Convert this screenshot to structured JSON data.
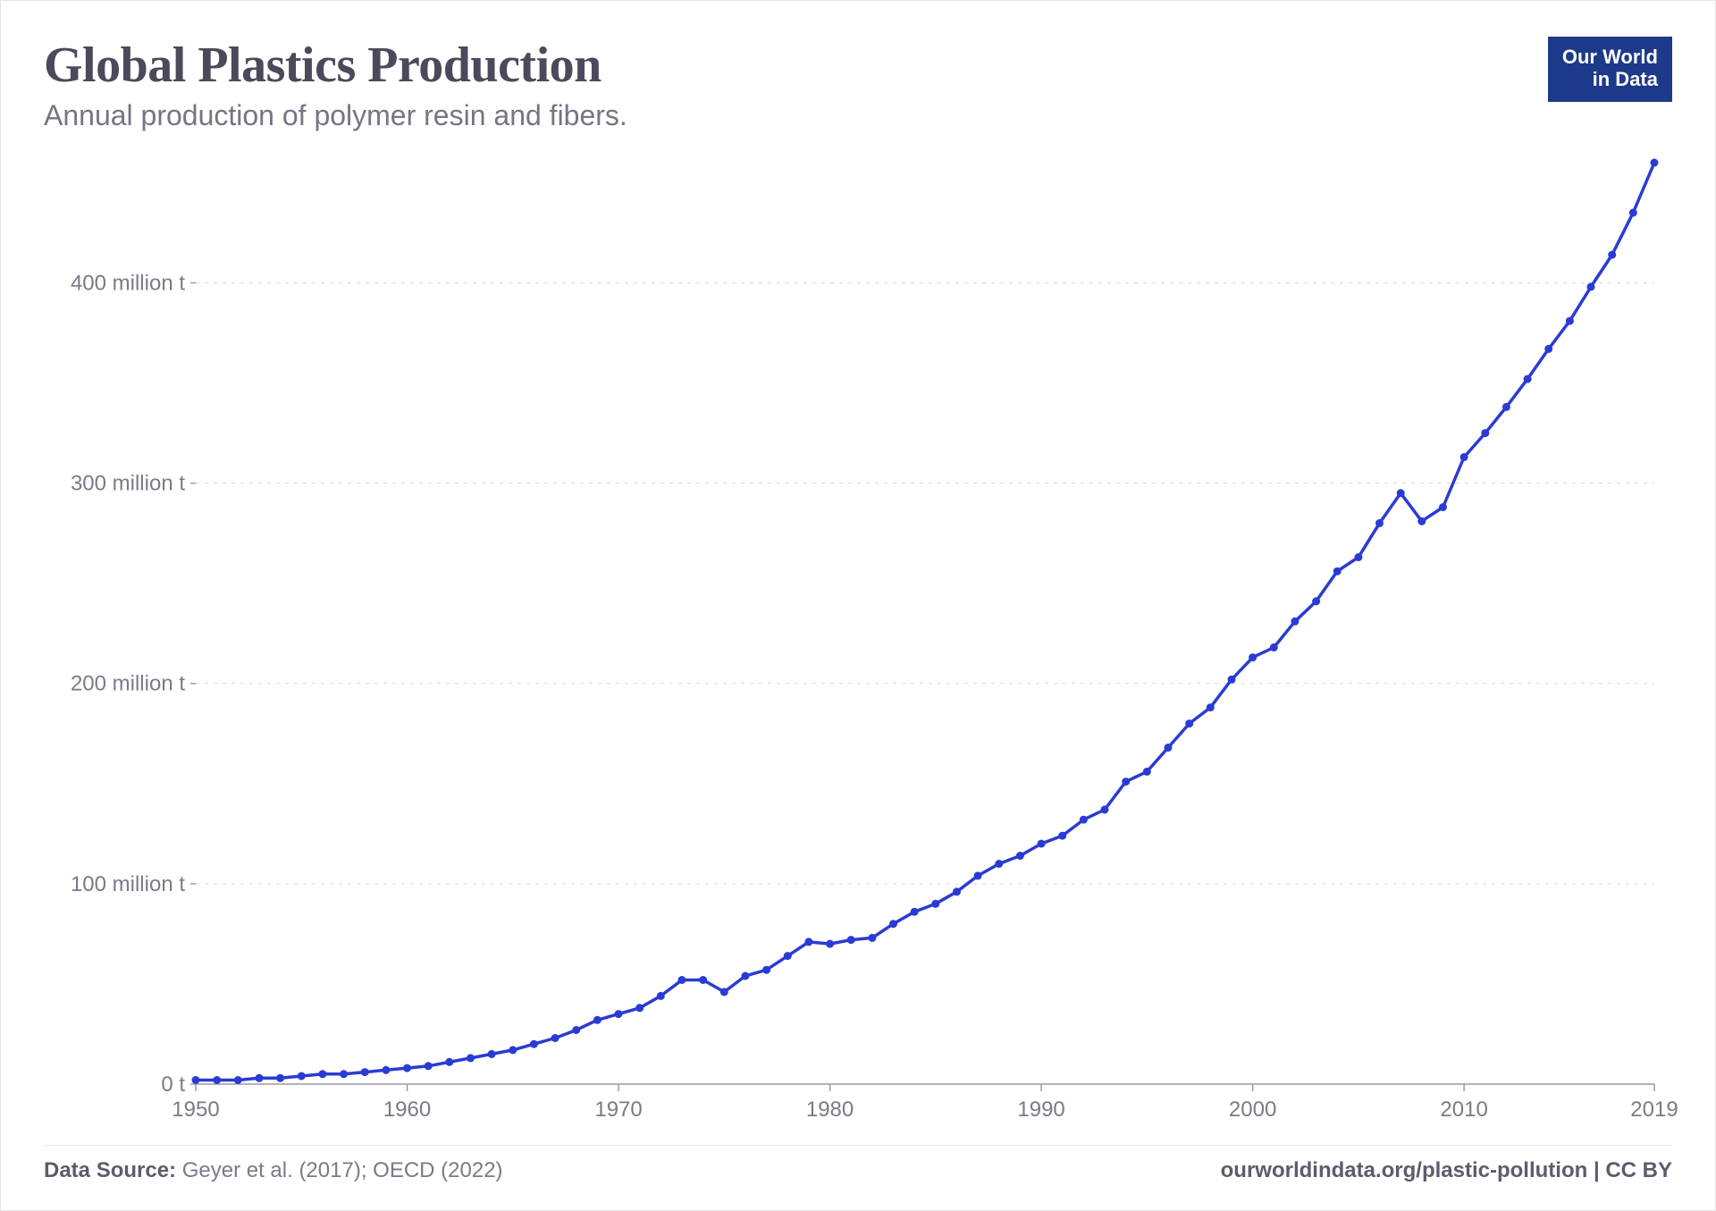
{
  "badge": {
    "line1": "Our World",
    "line2": "in Data",
    "bg": "#1d3a8a",
    "fg": "#ffffff"
  },
  "header": {
    "title": "Global Plastics Production",
    "subtitle": "Annual production of polymer resin and fibers."
  },
  "chart": {
    "type": "line",
    "line_color": "#2a3bd4",
    "dot_color": "#2a3bd4",
    "dot_radius": 4.5,
    "line_width": 3.5,
    "background_color": "#ffffff",
    "grid_color": "#d8d8d8",
    "axis_color": "#9a9aa5",
    "label_color": "#7a7a88",
    "label_fontsize": 24,
    "x": {
      "min": 1950,
      "max": 2019,
      "ticks": [
        1950,
        1960,
        1970,
        1980,
        1990,
        2000,
        2010,
        2019
      ],
      "tick_labels": [
        "1950",
        "1960",
        "1970",
        "1980",
        "1990",
        "2000",
        "2010",
        "2019"
      ]
    },
    "y": {
      "min": 0,
      "max": 460,
      "ticks": [
        0,
        100,
        200,
        300,
        400
      ],
      "tick_labels": [
        "0 t",
        "100 million t",
        "200 million t",
        "300 million t",
        "400 million t"
      ]
    },
    "series": {
      "years": [
        1950,
        1951,
        1952,
        1953,
        1954,
        1955,
        1956,
        1957,
        1958,
        1959,
        1960,
        1961,
        1962,
        1963,
        1964,
        1965,
        1966,
        1967,
        1968,
        1969,
        1970,
        1971,
        1972,
        1973,
        1974,
        1975,
        1976,
        1977,
        1978,
        1979,
        1980,
        1981,
        1982,
        1983,
        1984,
        1985,
        1986,
        1987,
        1988,
        1989,
        1990,
        1991,
        1992,
        1993,
        1994,
        1995,
        1996,
        1997,
        1998,
        1999,
        2000,
        2001,
        2002,
        2003,
        2004,
        2005,
        2006,
        2007,
        2008,
        2009,
        2010,
        2011,
        2012,
        2013,
        2014,
        2015,
        2016,
        2017,
        2018,
        2019
      ],
      "values": [
        2,
        2,
        2,
        3,
        3,
        4,
        5,
        5,
        6,
        7,
        8,
        9,
        11,
        13,
        15,
        17,
        20,
        23,
        27,
        32,
        35,
        38,
        44,
        52,
        52,
        46,
        54,
        57,
        64,
        71,
        70,
        72,
        73,
        80,
        86,
        90,
        96,
        104,
        110,
        114,
        120,
        124,
        132,
        137,
        151,
        156,
        168,
        180,
        188,
        202,
        213,
        218,
        231,
        241,
        256,
        263,
        280,
        295,
        281,
        288,
        313,
        325,
        338,
        352,
        367,
        381,
        398,
        414,
        435,
        460
      ]
    }
  },
  "footer": {
    "source_label": "Data Source:",
    "source_text": " Geyer et al. (2017); OECD (2022)",
    "attribution": "ourworldindata.org/plastic-pollution | CC BY"
  }
}
